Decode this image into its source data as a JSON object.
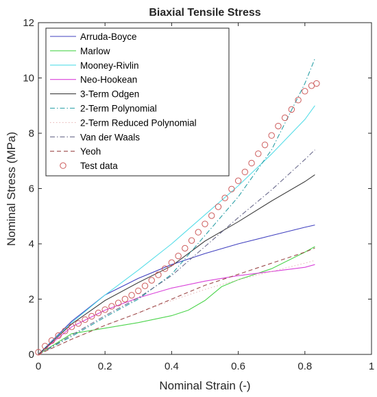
{
  "chart_data": {
    "type": "line",
    "title": "Biaxial Tensile Stress",
    "xlabel": "Nominal Strain (-)",
    "ylabel": "Nominal Stress (MPa)",
    "xlim": [
      0,
      1
    ],
    "ylim": [
      0,
      12
    ],
    "xticks": [
      0,
      0.2,
      0.4,
      0.6,
      0.8,
      1
    ],
    "xtick_labels": [
      "0",
      "0.2",
      "0.4",
      "0.6",
      "0.8",
      "1"
    ],
    "yticks": [
      0,
      2,
      4,
      6,
      8,
      10,
      12
    ],
    "ytick_labels": [
      "0",
      "2",
      "4",
      "6",
      "8",
      "10",
      "12"
    ],
    "grid": false,
    "legend_position": "top-left",
    "series": [
      {
        "name": "Arruda-Boyce",
        "color": "#3f3fbf",
        "style": "solid",
        "x": [
          0,
          0.1,
          0.2,
          0.3,
          0.4,
          0.5,
          0.6,
          0.7,
          0.8,
          0.83
        ],
        "y": [
          0,
          1.2,
          2.15,
          2.75,
          3.25,
          3.65,
          4.0,
          4.3,
          4.6,
          4.68
        ]
      },
      {
        "name": "Marlow",
        "color": "#4cd44c",
        "style": "solid",
        "x": [
          0,
          0.1,
          0.2,
          0.3,
          0.4,
          0.45,
          0.5,
          0.55,
          0.6,
          0.7,
          0.8,
          0.83
        ],
        "y": [
          0,
          0.75,
          0.95,
          1.15,
          1.4,
          1.6,
          1.95,
          2.45,
          2.7,
          3.1,
          3.7,
          3.9
        ]
      },
      {
        "name": "Mooney-Rivlin",
        "color": "#55dde8",
        "style": "solid",
        "x": [
          0,
          0.1,
          0.2,
          0.3,
          0.4,
          0.5,
          0.6,
          0.7,
          0.8,
          0.83
        ],
        "y": [
          0,
          1.15,
          2.15,
          3.05,
          4.0,
          5.05,
          6.1,
          7.25,
          8.5,
          9.0
        ]
      },
      {
        "name": "Neo-Hookean",
        "color": "#d940d9",
        "style": "solid",
        "x": [
          0,
          0.1,
          0.2,
          0.3,
          0.4,
          0.5,
          0.6,
          0.7,
          0.8,
          0.83
        ],
        "y": [
          0,
          1.0,
          1.6,
          2.05,
          2.4,
          2.65,
          2.85,
          3.0,
          3.15,
          3.25
        ]
      },
      {
        "name": "3-Term Odgen",
        "color": "#404040",
        "style": "solid",
        "x": [
          0,
          0.1,
          0.2,
          0.3,
          0.4,
          0.5,
          0.6,
          0.7,
          0.8,
          0.83
        ],
        "y": [
          0,
          1.1,
          1.95,
          2.6,
          3.2,
          4.1,
          4.8,
          5.55,
          6.25,
          6.5
        ]
      },
      {
        "name": "2-Term Polynomial",
        "color": "#2a9fa6",
        "style": "dashdot",
        "x": [
          0,
          0.1,
          0.2,
          0.3,
          0.4,
          0.5,
          0.6,
          0.7,
          0.8,
          0.83
        ],
        "y": [
          0,
          0.65,
          1.35,
          2.0,
          2.9,
          4.3,
          5.7,
          7.4,
          9.8,
          10.7
        ]
      },
      {
        "name": "2-Term Reduced Polynomial",
        "color": "#e8b8b8",
        "style": "dotted",
        "x": [
          0,
          0.1,
          0.2,
          0.3,
          0.4,
          0.5,
          0.6,
          0.7,
          0.8,
          0.83
        ],
        "y": [
          0,
          0.55,
          1.05,
          1.5,
          1.95,
          2.35,
          2.7,
          3.0,
          3.3,
          3.4
        ]
      },
      {
        "name": "Van der Waals",
        "color": "#6a6a8c",
        "style": "dashdot",
        "x": [
          0,
          0.1,
          0.2,
          0.3,
          0.4,
          0.5,
          0.6,
          0.7,
          0.8,
          0.83
        ],
        "y": [
          0,
          0.7,
          1.4,
          2.05,
          2.85,
          3.9,
          4.95,
          5.95,
          7.05,
          7.4
        ]
      },
      {
        "name": "Yeoh",
        "color": "#9c4a4a",
        "style": "dashed",
        "x": [
          0,
          0.1,
          0.2,
          0.3,
          0.4,
          0.5,
          0.6,
          0.7,
          0.8,
          0.83
        ],
        "y": [
          0,
          0.55,
          1.05,
          1.5,
          2.0,
          2.5,
          2.9,
          3.3,
          3.7,
          3.85
        ]
      },
      {
        "name": "Test data",
        "color": "#cc5a5a",
        "style": "markers",
        "x": [
          0.0,
          0.02,
          0.04,
          0.06,
          0.08,
          0.1,
          0.12,
          0.14,
          0.16,
          0.18,
          0.2,
          0.22,
          0.24,
          0.26,
          0.28,
          0.3,
          0.32,
          0.34,
          0.36,
          0.38,
          0.4,
          0.42,
          0.44,
          0.46,
          0.48,
          0.5,
          0.52,
          0.54,
          0.56,
          0.58,
          0.6,
          0.62,
          0.64,
          0.66,
          0.68,
          0.7,
          0.72,
          0.74,
          0.76,
          0.78,
          0.8,
          0.82,
          0.835
        ],
        "y": [
          0.08,
          0.3,
          0.5,
          0.68,
          0.85,
          1.0,
          1.12,
          1.26,
          1.38,
          1.5,
          1.62,
          1.74,
          1.86,
          2.0,
          2.14,
          2.3,
          2.48,
          2.68,
          2.88,
          3.1,
          3.32,
          3.56,
          3.84,
          4.12,
          4.42,
          4.72,
          5.02,
          5.34,
          5.66,
          5.98,
          6.28,
          6.6,
          6.92,
          7.26,
          7.58,
          7.92,
          8.26,
          8.56,
          8.86,
          9.2,
          9.52,
          9.72,
          9.8
        ]
      }
    ]
  }
}
